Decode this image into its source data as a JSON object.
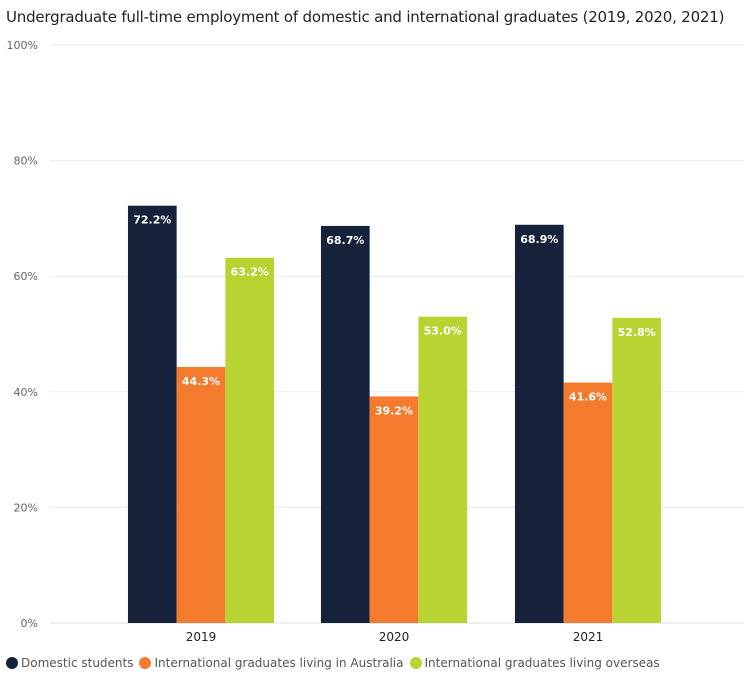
{
  "chart_data": {
    "type": "bar",
    "title": "Undergraduate full-time employment of domestic and international graduates (2019, 2020, 2021)",
    "categories": [
      "2019",
      "2020",
      "2021"
    ],
    "series": [
      {
        "name": "Domestic students",
        "color": "#16213a",
        "values": [
          72.2,
          68.7,
          68.9
        ],
        "labels": [
          "72.2%",
          "68.7%",
          "68.9%"
        ]
      },
      {
        "name": "International graduates living in Australia",
        "color": "#f47a2e",
        "values": [
          44.3,
          39.2,
          41.6
        ],
        "labels": [
          "44.3%",
          "39.2%",
          "41.6%"
        ]
      },
      {
        "name": "International graduates living overseas",
        "color": "#b8d433",
        "values": [
          63.2,
          53.0,
          52.8
        ],
        "labels": [
          "63.2%",
          "53.0%",
          "52.8%"
        ]
      }
    ],
    "yticks": [
      "0%",
      "20%",
      "40%",
      "60%",
      "80%",
      "100%"
    ],
    "ytick_values": [
      0,
      20,
      40,
      60,
      80,
      100
    ],
    "ylim": [
      0,
      100
    ],
    "xlabel": "",
    "ylabel": "",
    "grid": true,
    "legend_position": "bottom-left"
  }
}
